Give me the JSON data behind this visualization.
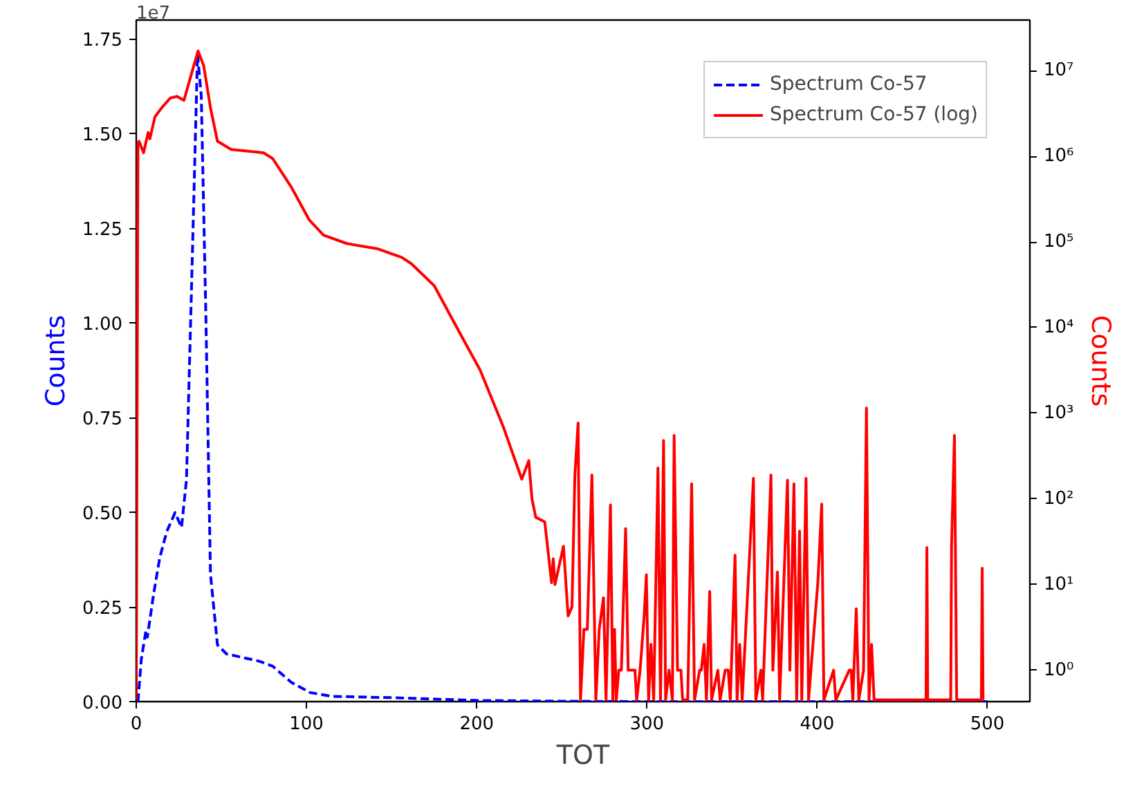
{
  "chart_data": {
    "type": "line",
    "xlabel": "TOT",
    "ylabel": "Counts",
    "y2label": "Counts",
    "annotations": [
      "1e7"
    ],
    "xlim": [
      0,
      525
    ],
    "xticks": [
      0,
      100,
      200,
      300,
      400,
      500
    ],
    "ylim": [
      0,
      1.8
    ],
    "yticks": [
      {
        "value": 0,
        "label": "0.00"
      },
      0.25,
      {
        "value": 0.5,
        "label": "0.50"
      },
      0.75,
      {
        "value": 1,
        "label": "1.00"
      },
      1.25,
      {
        "value": 1.5,
        "label": "1.50"
      },
      1.75
    ],
    "y2lim": [
      0.43,
      39000000
    ],
    "y2ticks": [
      {
        "value": 1,
        "label": "10⁰"
      },
      {
        "value": 10,
        "label": "10¹"
      },
      {
        "value": 100,
        "label": "10²"
      },
      {
        "value": 1000,
        "label": "10³"
      },
      {
        "value": 10000,
        "label": "10⁴"
      },
      {
        "value": 100000,
        "label": "10⁵"
      },
      {
        "value": 1000000,
        "label": "10⁶"
      },
      {
        "value": 10000000,
        "label": "10⁷"
      }
    ],
    "log": "y2",
    "grid": false,
    "legend": "top right",
    "series": [
      {
        "name": "Spectrum Co-57",
        "color": "#0000ff",
        "line_style": "dashed",
        "x": [
          1,
          3,
          5.7,
          6.5,
          10.3,
          13.8,
          17.9,
          22.8,
          26.6,
          29.5,
          32.8,
          36,
          38.2,
          40.9,
          43.6,
          47.7,
          53,
          72,
          80,
          91,
          102,
          115,
          153,
          200,
          250,
          300,
          400,
          500
        ],
        "values": [
          0,
          0.113,
          0.188,
          0.17,
          0.287,
          0.38,
          0.449,
          0.499,
          0.46,
          0.586,
          1.15,
          1.71,
          1.6,
          1.02,
          0.337,
          0.15,
          0.126,
          0.107,
          0.094,
          0.051,
          0.024,
          0.014,
          0.01,
          0.003,
          0.001,
          0,
          0,
          0
        ]
      },
      {
        "name": "Spectrum Co-57 (log)",
        "color": "#ff0000",
        "line_style": "solid",
        "axis": "y2",
        "x": [
          0,
          1,
          1.6,
          4.3,
          7,
          8,
          11,
          15,
          20,
          24,
          28,
          31.5,
          36.3,
          39.6,
          43.6,
          47.7,
          55.8,
          74.8,
          80.2,
          91,
          101.7,
          110,
          123.6,
          142,
          156,
          161.5,
          175,
          188.6,
          202,
          215.7,
          226.5,
          230.6,
          232.5,
          234.7,
          240,
          244,
          245,
          246,
          251,
          253.7,
          256,
          257.7,
          259.6,
          261,
          263,
          265,
          267.7,
          270,
          272,
          274.5,
          276,
          278.6,
          280,
          281,
          282,
          283.5,
          285,
          287.5,
          289,
          291,
          293,
          294,
          296,
          298.4,
          299.7,
          301,
          302.4,
          304,
          306.5,
          308,
          309.8,
          311,
          313,
          315,
          316,
          318,
          320,
          321,
          324,
          326.3,
          328,
          331,
          332,
          333.6,
          335,
          336.9,
          338,
          341.7,
          343,
          346,
          347.8,
          349,
          351.8,
          353,
          354.5,
          356,
          362.6,
          364,
          367,
          368,
          372.9,
          374,
          376.7,
          378,
          382.6,
          384,
          386.4,
          388,
          389.7,
          391,
          393.5,
          395,
          400.5,
          402.7,
          404,
          409.7,
          411,
          418.9,
          420,
          421,
          423,
          424.5,
          427.3,
          429,
          430.5,
          432,
          433.5,
          464,
          464.5,
          465,
          478.5,
          479,
          480.7,
          482,
          496.5,
          497,
          497.5
        ],
        "values": [
          0.45,
          1400000,
          1500000,
          1100000,
          1900000,
          1600000,
          2900000,
          3700000,
          4800000,
          5000000,
          4500000,
          7900000,
          17000000,
          11500000,
          3700000,
          1500000,
          1200000,
          1100000,
          940000,
          440000,
          180000,
          120000,
          96000,
          83000,
          66000,
          56000,
          31000,
          9800,
          3200,
          690,
          170,
          280,
          100,
          61,
          54,
          10.5,
          20,
          10,
          28,
          4.3,
          5.5,
          190,
          770,
          0.45,
          3,
          3,
          190,
          0.45,
          3,
          7,
          0.45,
          85,
          0.45,
          3,
          0.45,
          1,
          1,
          45,
          1,
          1,
          1,
          0.45,
          1,
          4.3,
          13,
          0.45,
          2,
          0.45,
          230,
          0.45,
          480,
          0.45,
          1,
          0.45,
          550,
          1,
          1,
          0.45,
          0.45,
          150,
          0.45,
          1,
          1,
          2,
          0.45,
          8.3,
          0.45,
          1,
          0.45,
          1,
          1,
          0.45,
          22,
          0.45,
          2,
          0.45,
          174,
          0.45,
          1,
          0.45,
          190,
          1,
          14,
          0.45,
          165,
          1,
          150,
          0.45,
          42,
          0.45,
          174,
          0.45,
          11,
          87,
          0.45,
          1,
          0.45,
          1,
          1,
          0.45,
          5.2,
          0.45,
          1,
          1150,
          0.45,
          2,
          0.45,
          0.45,
          27,
          0.45,
          0.45,
          28,
          550,
          0.45,
          0.45,
          15.5,
          0.45
        ]
      }
    ]
  }
}
